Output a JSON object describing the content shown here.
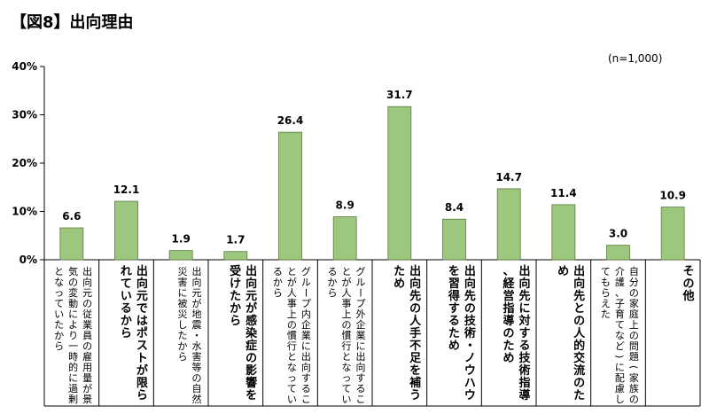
{
  "title": "【図8】出向理由",
  "chart_data": {
    "type": "bar",
    "title": "【図8】出向理由",
    "note": "(n=1,000)",
    "unit": "%",
    "ylim": [
      0,
      40
    ],
    "yticks": [
      "0%",
      "10%",
      "20%",
      "30%",
      "40%"
    ],
    "grid": false,
    "categories": [
      "出向元の従業員の雇用量が景気の変動により一時的に過剰となっていたから",
      "出向元ではポストが限られているから",
      "出向元が地震・水害等の自然災害に被災したから",
      "出向元が感染症の影響を受けたから",
      "グループ内企業に出向することが人事上の慣行となっているから",
      "グループ外企業に出向することが人事上の慣行となっているから",
      "出向先の人手不足を補うため",
      "出向先の技術・ノウハウを習得するため",
      "出向先に対する技術指導、経営指導のため",
      "出向先との人的交流のため",
      "自分の家庭上の問題(家族の介護、子育てなど)に配慮してもらえた",
      "その他"
    ],
    "values": [
      6.6,
      12.1,
      1.9,
      1.7,
      26.4,
      8.9,
      31.7,
      8.4,
      14.7,
      11.4,
      3.0,
      10.9
    ],
    "value_labels": [
      "6.6",
      "12.1",
      "1.9",
      "1.7",
      "26.4",
      "8.9",
      "31.7",
      "8.4",
      "14.7",
      "11.4",
      "3.0",
      "10.9"
    ],
    "bar_color": "#9dc67f",
    "bar_stroke": "#5a7a3a"
  }
}
